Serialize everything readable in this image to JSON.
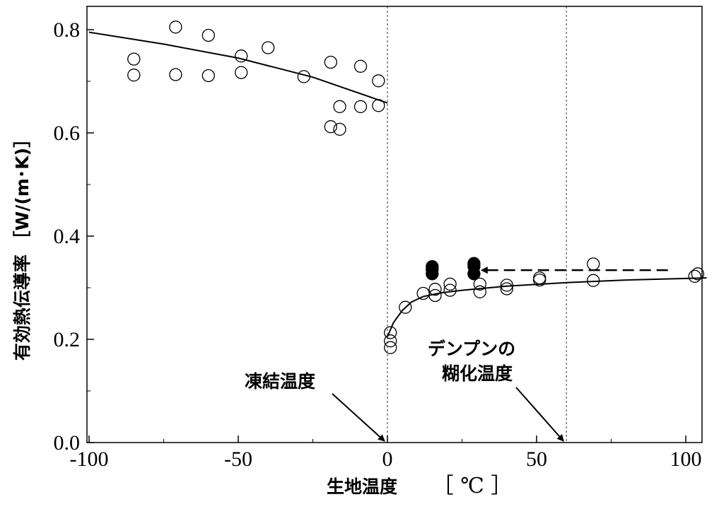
{
  "chart_data": {
    "type": "scatter",
    "xlabel": "生地温度",
    "xlabel_unit": "［ ℃ ］",
    "ylabel": "有効熱伝導率 ［W/(m･K)］",
    "xlim": [
      -100,
      110
    ],
    "ylim": [
      0.0,
      0.85
    ],
    "x_ticks": [
      -100,
      -50,
      0,
      50,
      100
    ],
    "x_tick_labels": [
      "-100",
      "-50",
      "0",
      "50",
      "100"
    ],
    "y_ticks": [
      0.0,
      0.2,
      0.4,
      0.6,
      0.8
    ],
    "y_tick_labels": [
      "0.0",
      "0.2",
      "0.4",
      "0.6",
      "0.8"
    ],
    "grid": false,
    "series": [
      {
        "marker": "open-circle",
        "points": [
          [
            -85,
            0.743
          ],
          [
            -85,
            0.712
          ],
          [
            -71,
            0.805
          ],
          [
            -71,
            0.713
          ],
          [
            -60,
            0.789
          ],
          [
            -60,
            0.711
          ],
          [
            -49,
            0.749
          ],
          [
            -49,
            0.717
          ],
          [
            -40,
            0.765
          ],
          [
            -28,
            0.709
          ],
          [
            -19,
            0.737
          ],
          [
            -19,
            0.612
          ],
          [
            -16,
            0.651
          ],
          [
            -16,
            0.607
          ],
          [
            -9,
            0.729
          ],
          [
            -9,
            0.651
          ],
          [
            -3,
            0.701
          ],
          [
            -3,
            0.653
          ],
          [
            1,
            0.213
          ],
          [
            1,
            0.197
          ],
          [
            1,
            0.184
          ],
          [
            6,
            0.262
          ],
          [
            12,
            0.289
          ],
          [
            16,
            0.297
          ],
          [
            16,
            0.285
          ],
          [
            21,
            0.307
          ],
          [
            21,
            0.295
          ],
          [
            31,
            0.307
          ],
          [
            31,
            0.292
          ],
          [
            40,
            0.305
          ],
          [
            40,
            0.298
          ],
          [
            51,
            0.319
          ],
          [
            51,
            0.315
          ],
          [
            69,
            0.346
          ],
          [
            69,
            0.314
          ],
          [
            103,
            0.322
          ],
          [
            104,
            0.327
          ]
        ]
      },
      {
        "marker": "filled-circle",
        "points": [
          [
            15,
            0.341
          ],
          [
            15,
            0.335
          ],
          [
            15,
            0.327
          ],
          [
            29,
            0.347
          ],
          [
            29,
            0.341
          ],
          [
            29,
            0.327
          ]
        ]
      }
    ],
    "fit_lines": [
      {
        "points": [
          [
            -100,
            0.795
          ],
          [
            -75,
            0.772
          ],
          [
            -50,
            0.745
          ],
          [
            -25,
            0.708
          ],
          [
            0,
            0.658
          ]
        ]
      },
      {
        "points": [
          [
            0,
            0.205
          ],
          [
            2,
            0.232
          ],
          [
            5,
            0.256
          ],
          [
            8,
            0.272
          ],
          [
            12,
            0.283
          ],
          [
            18,
            0.29
          ],
          [
            25,
            0.295
          ],
          [
            40,
            0.303
          ],
          [
            60,
            0.31
          ],
          [
            80,
            0.315
          ],
          [
            100,
            0.318
          ],
          [
            107,
            0.319
          ]
        ]
      }
    ],
    "reference_lines": [
      {
        "x": 0,
        "label": [
          "凍結温度"
        ]
      },
      {
        "x": 60,
        "label": [
          "デンプンの",
          "糊化温度"
        ]
      }
    ],
    "dashed_arrow": {
      "from": [
        94,
        0.334
      ],
      "to": [
        31,
        0.334
      ]
    }
  }
}
